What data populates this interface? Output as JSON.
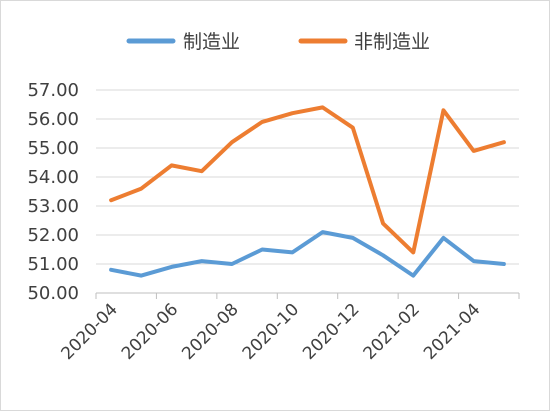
{
  "chart_data": {
    "type": "line",
    "title": "",
    "xlabel": "",
    "ylabel": "",
    "ylim": [
      50.0,
      57.0
    ],
    "y_ticks": [
      "50.00",
      "51.00",
      "52.00",
      "53.00",
      "54.00",
      "55.00",
      "56.00",
      "57.00"
    ],
    "x": [
      "2020-04",
      "2020-05",
      "2020-06",
      "2020-07",
      "2020-08",
      "2020-09",
      "2020-10",
      "2020-11",
      "2020-12",
      "2021-01",
      "2021-02",
      "2021-03",
      "2021-04",
      "2021-05"
    ],
    "x_tick_labels": [
      "2020-04",
      "2020-06",
      "2020-08",
      "2020-10",
      "2020-12",
      "2021-02",
      "2021-04"
    ],
    "legend_position": "top",
    "grid": "horizontal",
    "series": [
      {
        "name": "制造业",
        "color": "#5B9BD5",
        "values": [
          50.8,
          50.6,
          50.9,
          51.1,
          51.0,
          51.5,
          51.4,
          52.1,
          51.9,
          51.3,
          50.6,
          51.9,
          51.1,
          51.0
        ]
      },
      {
        "name": "非制造业",
        "color": "#ED7D31",
        "values": [
          53.2,
          53.6,
          54.4,
          54.2,
          55.2,
          55.9,
          56.2,
          56.4,
          55.7,
          52.4,
          51.4,
          56.3,
          54.9,
          55.2
        ]
      }
    ]
  }
}
